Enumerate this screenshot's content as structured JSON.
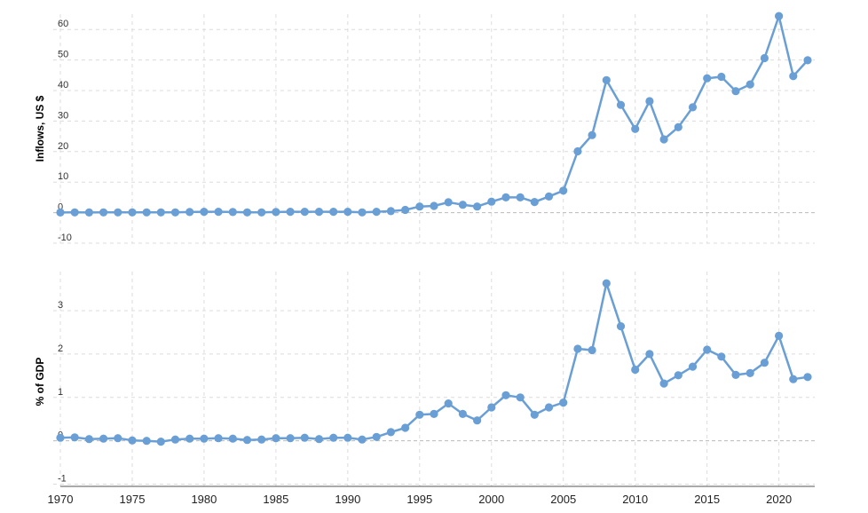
{
  "colors": {
    "series": "#6a9fd6",
    "grid": "#dcdcdc",
    "zeroline": "#b9b9b9"
  },
  "x_ticks": [
    "1970",
    "1975",
    "1980",
    "1985",
    "1990",
    "1995",
    "2000",
    "2005",
    "2010",
    "2015",
    "2020"
  ],
  "chart_data": [
    {
      "type": "line",
      "ylabel": "Inflows, US $",
      "xlim": [
        1970,
        2022
      ],
      "ylim": [
        -10,
        65
      ],
      "y_ticks": [
        "60",
        "50",
        "40",
        "30",
        "20",
        "10",
        "0",
        "-10"
      ],
      "grid": true,
      "x": [
        1970,
        1971,
        1972,
        1973,
        1974,
        1975,
        1976,
        1977,
        1978,
        1979,
        1980,
        1981,
        1982,
        1983,
        1984,
        1985,
        1986,
        1987,
        1988,
        1989,
        1990,
        1991,
        1992,
        1993,
        1994,
        1995,
        1996,
        1997,
        1998,
        1999,
        2000,
        2001,
        2002,
        2003,
        2004,
        2005,
        2006,
        2007,
        2008,
        2009,
        2010,
        2011,
        2012,
        2013,
        2014,
        2015,
        2016,
        2017,
        2018,
        2019,
        2020,
        2021,
        2022
      ],
      "values": [
        0.05,
        0.1,
        0.05,
        0.1,
        0.1,
        0.1,
        0.1,
        0.1,
        0.1,
        0.2,
        0.3,
        0.3,
        0.2,
        0.1,
        0.1,
        0.2,
        0.3,
        0.3,
        0.3,
        0.3,
        0.3,
        0.1,
        0.3,
        0.5,
        0.9,
        2.0,
        2.2,
        3.4,
        2.6,
        2.0,
        3.6,
        5.0,
        5.0,
        3.5,
        5.3,
        7.2,
        20.1,
        25.4,
        43.4,
        35.3,
        27.4,
        36.5,
        24.0,
        28.0,
        34.5,
        44.0,
        44.5,
        39.8,
        42.0,
        50.6,
        64.4,
        44.7,
        49.9
      ]
    },
    {
      "type": "line",
      "ylabel": "% of GDP",
      "xlim": [
        1970,
        2022
      ],
      "ylim": [
        -1.05,
        3.9
      ],
      "y_ticks": [
        "3",
        "2",
        "1",
        "0",
        "-1"
      ],
      "grid": true,
      "x": [
        1970,
        1971,
        1972,
        1973,
        1974,
        1975,
        1976,
        1977,
        1978,
        1979,
        1980,
        1981,
        1982,
        1983,
        1984,
        1985,
        1986,
        1987,
        1988,
        1989,
        1990,
        1991,
        1992,
        1993,
        1994,
        1995,
        1996,
        1997,
        1998,
        1999,
        2000,
        2001,
        2002,
        2003,
        2004,
        2005,
        2006,
        2007,
        2008,
        2009,
        2010,
        2011,
        2012,
        2013,
        2014,
        2015,
        2016,
        2017,
        2018,
        2019,
        2020,
        2021,
        2022
      ],
      "values": [
        0.07,
        0.08,
        0.04,
        0.05,
        0.06,
        0.01,
        0.0,
        -0.02,
        0.03,
        0.05,
        0.05,
        0.06,
        0.05,
        0.02,
        0.03,
        0.06,
        0.06,
        0.07,
        0.04,
        0.07,
        0.07,
        0.03,
        0.09,
        0.2,
        0.3,
        0.6,
        0.62,
        0.86,
        0.62,
        0.47,
        0.77,
        1.05,
        1.0,
        0.6,
        0.77,
        0.88,
        2.12,
        2.09,
        3.63,
        2.64,
        1.64,
        2.0,
        1.32,
        1.51,
        1.71,
        2.1,
        1.94,
        1.52,
        1.56,
        1.8,
        2.42,
        1.42,
        1.47
      ]
    }
  ]
}
